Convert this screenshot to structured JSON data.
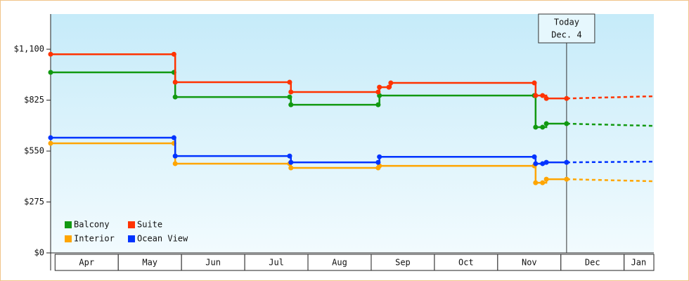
{
  "chart_data": {
    "type": "step",
    "xlim": [
      3.93,
      13.47
    ],
    "ylim": [
      0,
      1290
    ],
    "yticks": [
      {
        "value": 0,
        "label": "$0"
      },
      {
        "value": 275,
        "label": "$275"
      },
      {
        "value": 550,
        "label": "$550"
      },
      {
        "value": 825,
        "label": "$825"
      },
      {
        "value": 1100,
        "label": "$1,100"
      }
    ],
    "xticks": [
      {
        "value": 4.5,
        "label": "Apr"
      },
      {
        "value": 5.5,
        "label": "May"
      },
      {
        "value": 6.5,
        "label": "Jun"
      },
      {
        "value": 7.5,
        "label": "Jul"
      },
      {
        "value": 8.5,
        "label": "Aug"
      },
      {
        "value": 9.5,
        "label": "Sep"
      },
      {
        "value": 10.5,
        "label": "Oct"
      },
      {
        "value": 11.5,
        "label": "Nov"
      },
      {
        "value": 12.5,
        "label": "Dec"
      },
      {
        "value": 13.23,
        "label": "Jan"
      }
    ],
    "today": {
      "x": 12.09,
      "label": [
        "Today",
        "Dec. 4"
      ]
    },
    "legend": "bottom-left",
    "series": [
      {
        "name": "Balcony",
        "color": "#119911",
        "x": [
          3.93,
          5.88,
          5.9,
          7.71,
          7.73,
          9.11,
          9.13,
          11.58,
          11.6,
          11.71,
          11.77,
          12.09
        ],
        "values": [
          975,
          975,
          842,
          842,
          800,
          800,
          850,
          850,
          679,
          679,
          698,
          698
        ],
        "forecast": {
          "x": [
            12.09,
            13.47
          ],
          "values": [
            698,
            686
          ]
        }
      },
      {
        "name": "Suite",
        "color": "#ff3300",
        "x": [
          3.93,
          5.88,
          5.9,
          7.71,
          7.73,
          9.11,
          9.13,
          9.28,
          9.31,
          11.58,
          11.6,
          11.71,
          11.77,
          12.09
        ],
        "values": [
          1073,
          1073,
          922,
          922,
          869,
          869,
          895,
          895,
          918,
          918,
          850,
          850,
          834,
          834
        ],
        "forecast": {
          "x": [
            12.09,
            13.47
          ],
          "values": [
            834,
            846
          ]
        }
      },
      {
        "name": "Interior",
        "color": "#ffa500",
        "x": [
          3.93,
          5.88,
          5.9,
          7.71,
          7.73,
          9.11,
          9.13,
          11.58,
          11.6,
          11.71,
          11.77,
          12.09
        ],
        "values": [
          592,
          592,
          482,
          482,
          459,
          459,
          470,
          470,
          379,
          379,
          398,
          398
        ],
        "forecast": {
          "x": [
            12.09,
            13.47
          ],
          "values": [
            398,
            387
          ]
        }
      },
      {
        "name": "Ocean View",
        "color": "#0033ff",
        "x": [
          3.93,
          5.88,
          5.9,
          7.71,
          7.73,
          9.11,
          9.13,
          11.58,
          11.6,
          11.71,
          11.77,
          12.09
        ],
        "values": [
          622,
          622,
          523,
          523,
          489,
          489,
          519,
          519,
          482,
          482,
          489,
          489
        ],
        "forecast": {
          "x": [
            12.09,
            13.47
          ],
          "values": [
            489,
            493
          ]
        }
      }
    ]
  }
}
